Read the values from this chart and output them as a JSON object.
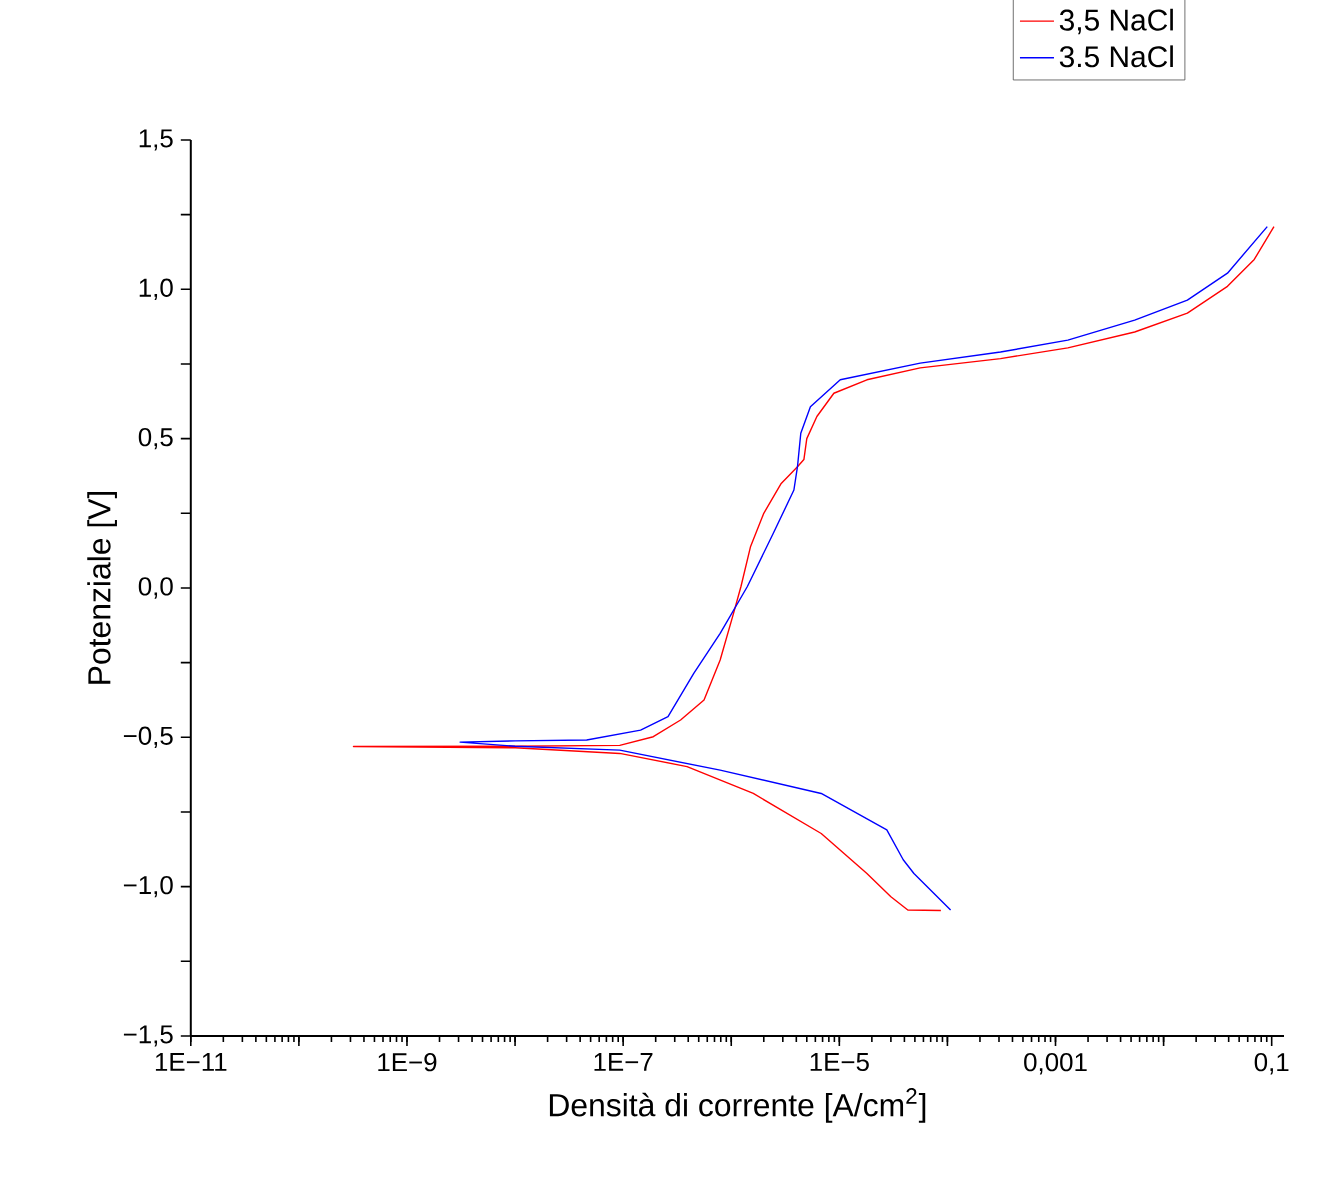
{
  "chart_data": {
    "type": "line",
    "xlabel": "Densità di corrente [A/cm$^{2}$]",
    "ylabel": "Potenziale [V]",
    "log": "x",
    "xlim": [
      1e-11,
      0.13
    ],
    "ylim": [
      -1.5,
      1.5
    ],
    "xticks": [
      {
        "value": 1e-11,
        "label": "1E−11"
      },
      {
        "value": 1e-10,
        "label": null
      },
      {
        "value": 1e-09,
        "label": "1E−9"
      },
      {
        "value": 1e-08,
        "label": null
      },
      {
        "value": 1e-07,
        "label": "1E−7"
      },
      {
        "value": 1e-06,
        "label": null
      },
      {
        "value": 1e-05,
        "label": "1E−5"
      },
      {
        "value": 0.0001,
        "label": null
      },
      {
        "value": 0.001,
        "label": "0,001"
      },
      {
        "value": 0.01,
        "label": null
      },
      {
        "value": 0.1,
        "label": "0,1"
      }
    ],
    "yticks": [
      {
        "value": -1.5,
        "label": "−1,5"
      },
      {
        "value": -1.25,
        "label": null
      },
      {
        "value": -1.0,
        "label": "−1,0"
      },
      {
        "value": -0.75,
        "label": null
      },
      {
        "value": -0.5,
        "label": "−0,5"
      },
      {
        "value": -0.25,
        "label": null
      },
      {
        "value": 0.0,
        "label": "0,0"
      },
      {
        "value": 0.25,
        "label": null
      },
      {
        "value": 0.5,
        "label": "0,5"
      },
      {
        "value": 0.75,
        "label": null
      },
      {
        "value": 1.0,
        "label": "1,0"
      },
      {
        "value": 1.25,
        "label": null
      },
      {
        "value": 1.5,
        "label": "1,5"
      }
    ],
    "grid": false,
    "legend": "top right",
    "marker": "none",
    "line_style": "solid",
    "series": [
      {
        "name": "3,5 NaCl",
        "color": "#ff0000",
        "x": [
          8.7e-05,
          4.3e-05,
          3e-05,
          1.8e-05,
          6.8e-06,
          1.6e-06,
          3.9e-07,
          9.3e-08,
          1e-08,
          3.2e-10,
          1e-08,
          9.3e-08,
          1.9e-07,
          3.4e-07,
          5.6e-07,
          7.9e-07,
          1.05e-06,
          1.23e-06,
          1.51e-06,
          2e-06,
          2.9e-06,
          4.1e-06,
          4.7e-06,
          5e-06,
          6.2e-06,
          8.9e-06,
          1.8e-05,
          5.6e-05,
          0.00031,
          0.0013,
          0.0054,
          0.0166,
          0.039,
          0.069,
          0.105
        ],
        "values": [
          -1.08,
          -1.078,
          -1.034,
          -0.956,
          -0.822,
          -0.688,
          -0.598,
          -0.554,
          -0.535,
          -0.531,
          -0.53,
          -0.527,
          -0.498,
          -0.442,
          -0.375,
          -0.241,
          -0.085,
          0.005,
          0.139,
          0.25,
          0.35,
          0.406,
          0.43,
          0.5,
          0.574,
          0.652,
          0.697,
          0.737,
          0.768,
          0.804,
          0.857,
          0.92,
          1.01,
          1.1,
          1.21
        ]
      },
      {
        "name": "3.5 NaCl",
        "color": "#0000ff",
        "x": [
          0.000107,
          4.9e-05,
          3.9e-05,
          2.75e-05,
          6.8e-06,
          7.9e-07,
          9.3e-08,
          1e-08,
          3.1e-09,
          1e-08,
          4.6e-08,
          1.45e-07,
          2.6e-07,
          4.5e-07,
          7.9e-07,
          1.41e-06,
          2.45e-06,
          3.8e-06,
          4.1e-06,
          4.4e-06,
          5.4e-06,
          1.02e-05,
          5.6e-05,
          0.00031,
          0.0013,
          0.0054,
          0.0166,
          0.039,
          0.091
        ],
        "values": [
          -1.078,
          -0.956,
          -0.91,
          -0.81,
          -0.688,
          -0.61,
          -0.543,
          -0.53,
          -0.516,
          -0.512,
          -0.509,
          -0.476,
          -0.431,
          -0.286,
          -0.152,
          0.005,
          0.183,
          0.328,
          0.406,
          0.518,
          0.607,
          0.697,
          0.753,
          0.79,
          0.83,
          0.897,
          0.964,
          1.054,
          1.21
        ]
      }
    ]
  }
}
